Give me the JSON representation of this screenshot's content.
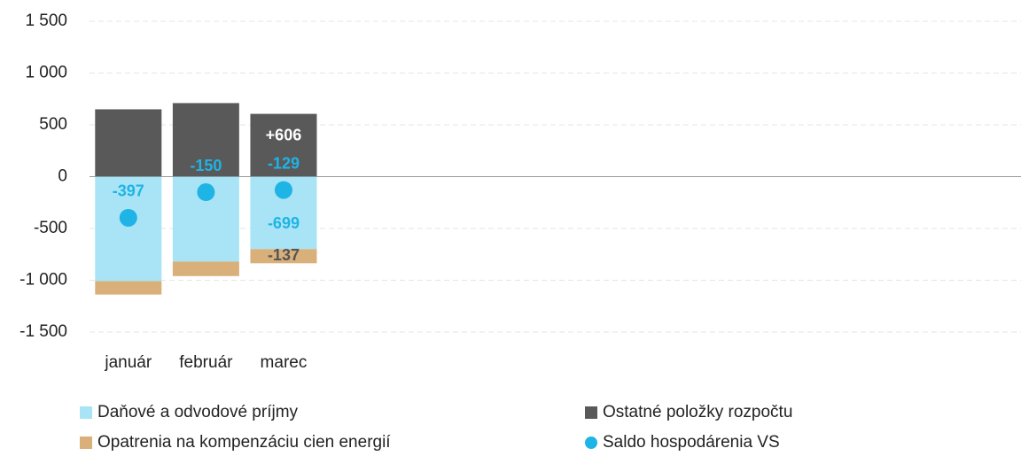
{
  "chart_data": {
    "type": "bar",
    "categories": [
      "január",
      "február",
      "marec",
      null,
      null,
      null,
      null,
      null,
      null,
      null,
      null,
      null
    ],
    "series": [
      {
        "name": "Daňové a odvodové príjmy",
        "color": "#a8e4f5",
        "values": [
          -1008,
          -820,
          -699,
          null,
          null,
          null,
          null,
          null,
          null,
          null,
          null,
          null
        ],
        "value_labels": [
          null,
          null,
          "-699",
          null,
          null,
          null,
          null,
          null,
          null,
          null,
          null,
          null
        ],
        "label_color": "#1eb4e6"
      },
      {
        "name": "Ostatné položky rozpočtu",
        "color": "#595959",
        "values": [
          650,
          710,
          606,
          null,
          null,
          null,
          null,
          null,
          null,
          null,
          null,
          null
        ],
        "value_labels": [
          null,
          null,
          "+606",
          null,
          null,
          null,
          null,
          null,
          null,
          null,
          null,
          null
        ],
        "label_color": "#ffffff"
      },
      {
        "name": "Opatrenia na kompenzáciu cien energií",
        "color": "#d9b07a",
        "values": [
          -130,
          -140,
          -137,
          null,
          null,
          null,
          null,
          null,
          null,
          null,
          null,
          null
        ],
        "value_labels": [
          null,
          null,
          "-137",
          null,
          null,
          null,
          null,
          null,
          null,
          null,
          null,
          null
        ],
        "label_color": "#555555"
      },
      {
        "name": "Saldo hospodárenia VS",
        "color": "#1eb4e6",
        "type": "scatter",
        "values": [
          -397,
          -150,
          -129,
          null,
          null,
          null,
          null,
          null,
          null,
          null,
          null,
          null
        ],
        "value_labels": [
          "-397",
          "-150",
          "-129",
          null,
          null,
          null,
          null,
          null,
          null,
          null,
          null,
          null
        ],
        "label_color": "#1eb4e6"
      }
    ],
    "ylim": [
      -1500,
      1500
    ],
    "yticks": [
      {
        "value": -1500,
        "label": "-1 500"
      },
      {
        "value": -1000,
        "label": "-1 000"
      },
      -500,
      0,
      500,
      {
        "value": 1000,
        "label": "1 000"
      },
      {
        "value": 1500,
        "label": "1 500"
      }
    ],
    "grid": true
  }
}
